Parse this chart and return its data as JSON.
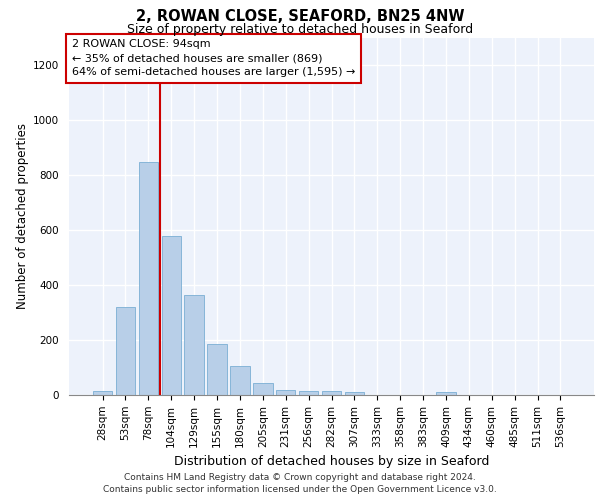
{
  "title": "2, ROWAN CLOSE, SEAFORD, BN25 4NW",
  "subtitle": "Size of property relative to detached houses in Seaford",
  "xlabel": "Distribution of detached houses by size in Seaford",
  "ylabel": "Number of detached properties",
  "bar_labels": [
    "28sqm",
    "53sqm",
    "78sqm",
    "104sqm",
    "129sqm",
    "155sqm",
    "180sqm",
    "205sqm",
    "231sqm",
    "256sqm",
    "282sqm",
    "307sqm",
    "333sqm",
    "358sqm",
    "383sqm",
    "409sqm",
    "434sqm",
    "460sqm",
    "485sqm",
    "511sqm",
    "536sqm"
  ],
  "bar_values": [
    15,
    320,
    848,
    578,
    365,
    185,
    105,
    45,
    20,
    15,
    15,
    10,
    0,
    0,
    0,
    10,
    0,
    0,
    0,
    0,
    0
  ],
  "bar_color": "#b8cfe8",
  "bar_edge_color": "#7aaed4",
  "property_line_color": "#cc0000",
  "property_line_x": 2.5,
  "annotation_line1": "2 ROWAN CLOSE: 94sqm",
  "annotation_line2": "← 35% of detached houses are smaller (869)",
  "annotation_line3": "64% of semi-detached houses are larger (1,595) →",
  "annotation_box_facecolor": "white",
  "annotation_box_edgecolor": "#cc0000",
  "ylim": [
    0,
    1300
  ],
  "yticks": [
    0,
    200,
    400,
    600,
    800,
    1000,
    1200
  ],
  "footer_text": "Contains HM Land Registry data © Crown copyright and database right 2024.\nContains public sector information licensed under the Open Government Licence v3.0.",
  "bg_color": "#edf2fb",
  "grid_color": "#ffffff",
  "title_fontsize": 10.5,
  "subtitle_fontsize": 9,
  "ylabel_fontsize": 8.5,
  "xlabel_fontsize": 9,
  "tick_fontsize": 7.5,
  "annotation_fontsize": 8,
  "footer_fontsize": 6.5
}
